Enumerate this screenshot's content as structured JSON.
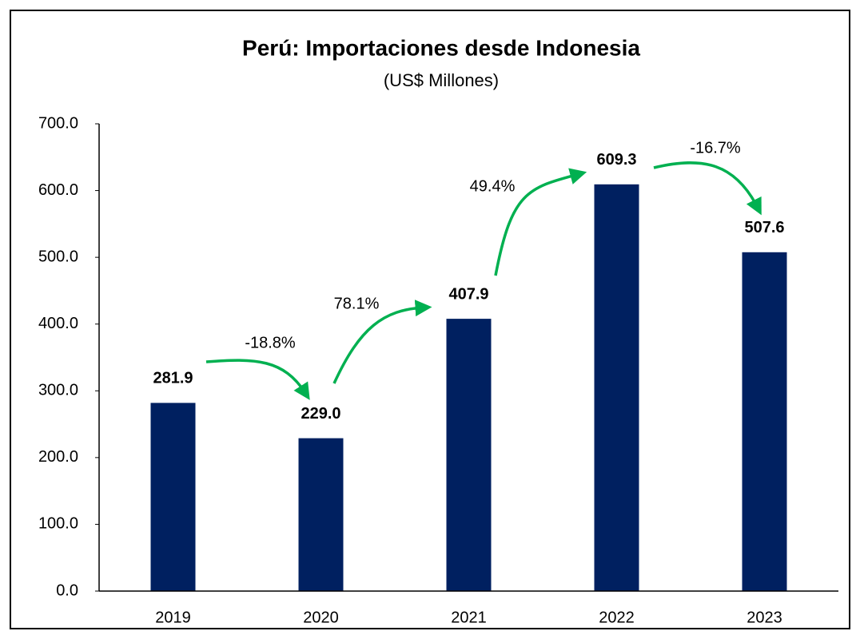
{
  "chart_data": {
    "type": "bar",
    "title": "Perú: Importaciones desde Indonesia",
    "subtitle": "(US$ Millones)",
    "categories": [
      "2019",
      "2020",
      "2021",
      "2022",
      "2023"
    ],
    "values": [
      281.9,
      229.0,
      407.9,
      609.3,
      507.6
    ],
    "value_labels": [
      "281.9",
      "229.0",
      "407.9",
      "609.3",
      "507.6"
    ],
    "color": "#002060",
    "ylim": [
      0,
      700
    ],
    "yticks": [
      {
        "value": 0,
        "label": "0.0"
      },
      {
        "value": 100,
        "label": "100.0"
      },
      {
        "value": 200,
        "label": "200.0"
      },
      {
        "value": 300,
        "label": "300.0"
      },
      {
        "value": 400,
        "label": "400.0"
      },
      {
        "value": 500,
        "label": "500.0"
      },
      {
        "value": 600,
        "label": "600.0"
      },
      {
        "value": 700,
        "label": "700.0"
      }
    ],
    "grid": false,
    "annotations": [
      "-18.8%",
      "78.1%",
      "49.4%",
      "-16.7%"
    ],
    "arrow_color": "#00b050"
  }
}
